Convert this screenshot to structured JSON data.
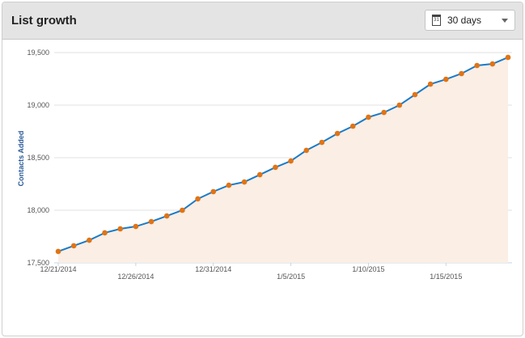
{
  "header": {
    "title": "List growth",
    "range_select": {
      "value": "30 days",
      "icon": "calendar-icon"
    }
  },
  "chart_data": {
    "type": "area",
    "title": "",
    "xlabel": "",
    "ylabel": "Contacts Added",
    "ylim": [
      17500,
      19500
    ],
    "yticks": [
      "17,500",
      "18,000",
      "18,500",
      "19,000",
      "19,500"
    ],
    "ytick_values": [
      17500,
      18000,
      18500,
      19000,
      19500
    ],
    "xtick_labels": [
      "12/21/2014",
      "12/26/2014",
      "12/31/2014",
      "1/5/2015",
      "1/10/2015",
      "1/15/2015"
    ],
    "xtick_indices": [
      0,
      5,
      10,
      15,
      20,
      25
    ],
    "grid": true,
    "colors": {
      "line": "#1a7bc8",
      "marker": "#e07416",
      "fill": "#fbeee4"
    },
    "x": [
      "12/21/2014",
      "12/22/2014",
      "12/23/2014",
      "12/24/2014",
      "12/25/2014",
      "12/26/2014",
      "12/27/2014",
      "12/28/2014",
      "12/29/2014",
      "12/30/2014",
      "12/31/2014",
      "1/1/2015",
      "1/2/2015",
      "1/3/2015",
      "1/4/2015",
      "1/5/2015",
      "1/6/2015",
      "1/7/2015",
      "1/8/2015",
      "1/9/2015",
      "1/10/2015",
      "1/11/2015",
      "1/12/2015",
      "1/13/2015",
      "1/14/2015",
      "1/15/2015",
      "1/16/2015",
      "1/17/2015",
      "1/18/2015",
      "1/19/2015"
    ],
    "values": [
      17608,
      17662,
      17715,
      17785,
      17823,
      17846,
      17892,
      17946,
      18000,
      18108,
      18177,
      18238,
      18269,
      18338,
      18408,
      18469,
      18570,
      18646,
      18730,
      18800,
      18885,
      18930,
      19000,
      19100,
      19200,
      19246,
      19300,
      19377,
      19392,
      19454
    ]
  }
}
